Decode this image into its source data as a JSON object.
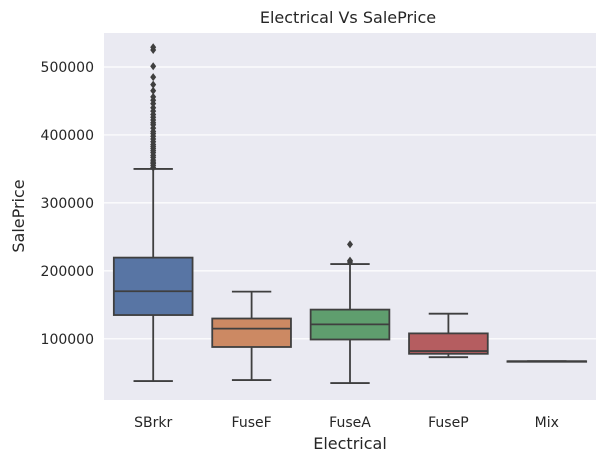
{
  "chart_data": {
    "type": "box",
    "title": "Electrical Vs SalePrice",
    "xlabel": "Electrical",
    "ylabel": "SalePrice",
    "ylim": [
      10000,
      550000
    ],
    "yticks": [
      100000,
      200000,
      300000,
      400000,
      500000
    ],
    "grid": true,
    "categories": [
      "SBrkr",
      "FuseF",
      "FuseA",
      "FuseP",
      "Mix"
    ],
    "boxes": [
      {
        "category": "SBrkr",
        "whisker_low": 37900,
        "q1": 135000,
        "median": 170000,
        "q3": 219500,
        "whisker_high": 350000,
        "fliers": [
          352000,
          355000,
          358000,
          360000,
          363000,
          367000,
          370000,
          374000,
          377000,
          380000,
          383000,
          386000,
          390000,
          394000,
          398000,
          402000,
          405000,
          410000,
          415000,
          418000,
          422000,
          426000,
          430000,
          435000,
          440000,
          446000,
          451000,
          456000,
          465000,
          474000,
          485000,
          501000,
          525000,
          529000
        ]
      },
      {
        "category": "FuseF",
        "whisker_low": 39300,
        "q1": 88000,
        "median": 115000,
        "q3": 129900,
        "whisker_high": 169500,
        "fliers": []
      },
      {
        "category": "FuseA",
        "whisker_low": 34900,
        "q1": 99000,
        "median": 121250,
        "q3": 143000,
        "whisker_high": 210000,
        "fliers": [
          213000,
          215000,
          239000
        ]
      },
      {
        "category": "FuseP",
        "whisker_low": 73000,
        "q1": 78000,
        "median": 82000,
        "q3": 108000,
        "whisker_high": 137000,
        "fliers": []
      },
      {
        "category": "Mix",
        "whisker_low": 67000,
        "q1": 67000,
        "median": 67000,
        "q3": 67000,
        "whisker_high": 67000,
        "fliers": []
      }
    ],
    "colors": {
      "SBrkr": "#5875a4",
      "FuseF": "#cc8963",
      "FuseA": "#5f9e6e",
      "FuseP": "#b55d60",
      "Mix": "#857aab",
      "plot_bg": "#eaeaf2",
      "grid": "#ffffff",
      "line": "#3f3f3f"
    }
  }
}
